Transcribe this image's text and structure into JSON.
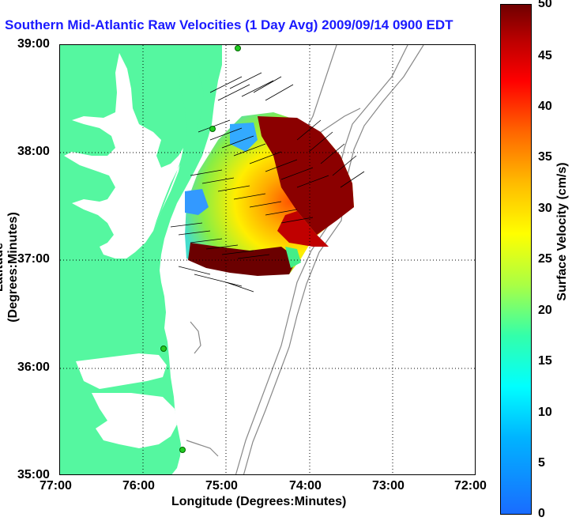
{
  "title": "Southern Mid-Atlantic Raw Velocities (1 Day Avg) 2009/09/14 0900 EDT",
  "x_axis": {
    "label": "Longitude (Degrees:Minutes)",
    "ticks": [
      "77:00",
      "76:00",
      "75:00",
      "74:00",
      "73:00",
      "72:00"
    ]
  },
  "y_axis": {
    "label": "Latitude (Degrees:Minutes)",
    "ticks": [
      "39:00",
      "38:00",
      "37:00",
      "36:00",
      "35:00"
    ]
  },
  "colorbar": {
    "label": "Surface Velocity (cm/s)",
    "ticks": [
      "50",
      "45",
      "40",
      "35",
      "30",
      "25",
      "20",
      "15",
      "10",
      "5",
      "0"
    ],
    "min": 0,
    "max": 50
  },
  "colors": {
    "land": "#55f7a0",
    "title": "#1a1aff",
    "contour": "#888888",
    "station": "#22cc22"
  }
}
